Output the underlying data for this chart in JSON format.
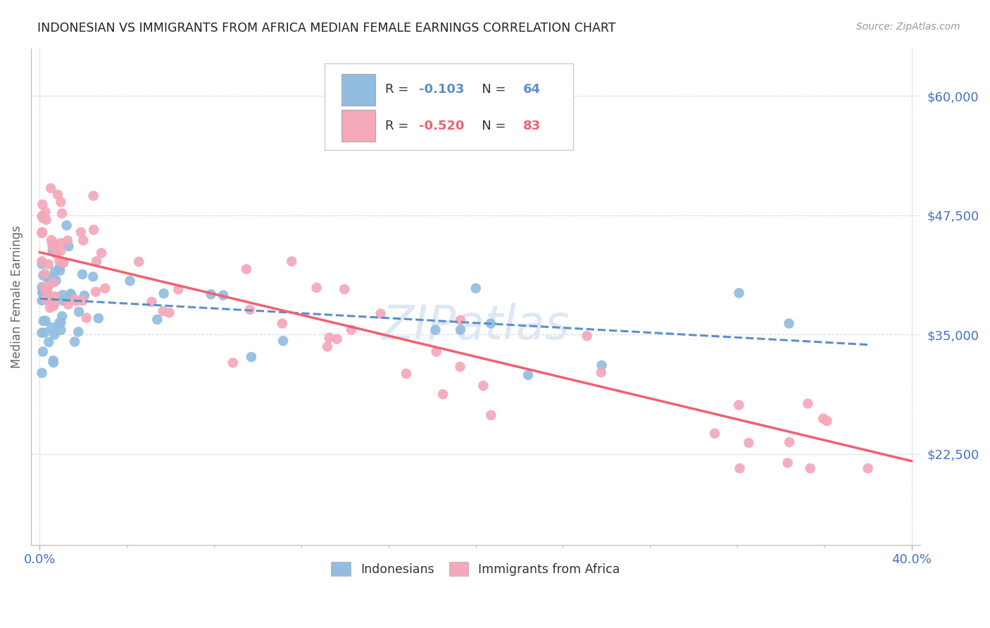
{
  "title": "INDONESIAN VS IMMIGRANTS FROM AFRICA MEDIAN FEMALE EARNINGS CORRELATION CHART",
  "source": "Source: ZipAtlas.com",
  "ylabel": "Median Female Earnings",
  "yticks": [
    22500,
    35000,
    47500,
    60000
  ],
  "ytick_labels": [
    "$22,500",
    "$35,000",
    "$47,500",
    "$60,000"
  ],
  "ymin": 13000,
  "ymax": 65000,
  "xmin": -0.004,
  "xmax": 0.404,
  "blue_R": "-0.103",
  "blue_N": "64",
  "pink_R": "-0.520",
  "pink_N": "83",
  "blue_color": "#92bde0",
  "pink_color": "#f4a8ba",
  "blue_line_color": "#5b8fc9",
  "pink_line_color": "#f06070",
  "grid_color": "#d8d8e0",
  "bg_color": "#ffffff",
  "title_color": "#222222",
  "axis_label_color": "#4472c4",
  "ylabel_color": "#666666",
  "watermark_color": "#dce8f4",
  "blue_seed": 101,
  "pink_seed": 202
}
